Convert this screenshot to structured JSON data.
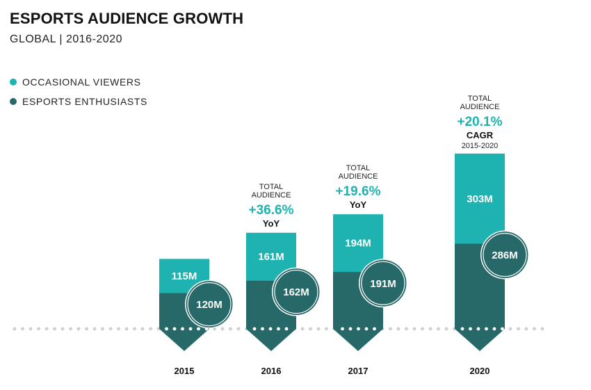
{
  "title": "ESPORTS AUDIENCE GROWTH",
  "subtitle": "GLOBAL | 2016-2020",
  "colors": {
    "occasional": "#1eb3b0",
    "enthusiasts": "#276968",
    "dots": "#cfcfcf"
  },
  "chart_data": {
    "type": "bar",
    "stacked": true,
    "categories": [
      "2015",
      "2016",
      "2017",
      "2020"
    ],
    "series": [
      {
        "name": "ESPORTS ENTHUSIASTS",
        "values": [
          120,
          162,
          191,
          286
        ],
        "labels": [
          "120M",
          "162M",
          "191M",
          "286M"
        ]
      },
      {
        "name": "OCCASIONAL VIEWERS",
        "values": [
          115,
          161,
          194,
          303
        ],
        "labels": [
          "115M",
          "161M",
          "194M",
          "303M"
        ]
      }
    ],
    "legend": "top-left",
    "annotations": [
      {
        "category": "2016",
        "line1": "TOTAL",
        "line2": "AUDIENCE",
        "value": "+36.6%",
        "kind": "YoY"
      },
      {
        "category": "2017",
        "line1": "TOTAL",
        "line2": "AUDIENCE",
        "value": "+19.6%",
        "kind": "YoY"
      },
      {
        "category": "2020",
        "line1": "TOTAL",
        "line2": "AUDIENCE",
        "value": "+20.1%",
        "kind": "CAGR",
        "range": "2015-2020"
      }
    ]
  }
}
